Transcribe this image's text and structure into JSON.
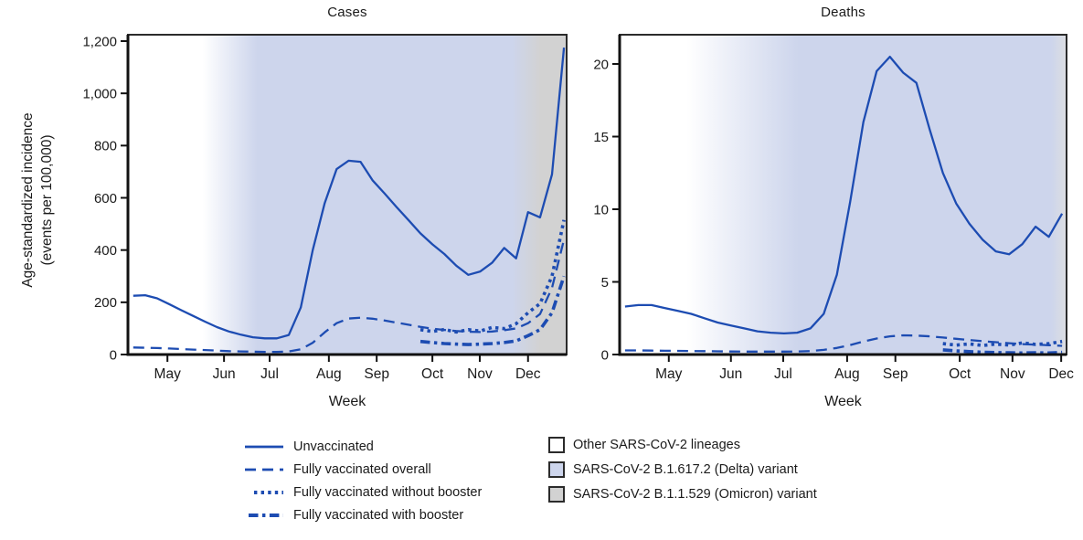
{
  "figure": {
    "background": "#ffffff"
  },
  "colors": {
    "line_blue": "#1d4cb2",
    "delta_fill": "#cdd5ec",
    "omicron_fill": "#d2d2d2",
    "other_fill": "#ffffff",
    "axis": "#111111",
    "border": "#2b2b2b",
    "text": "#1a1a1a"
  },
  "axes": {
    "y_label_line1": "Age-standardized incidence",
    "y_label_line2": "(events per 100,000)",
    "x_label": "Week"
  },
  "legend": {
    "lines": [
      {
        "key": "unvaccinated",
        "label": "Unvaccinated",
        "style": "solid"
      },
      {
        "key": "fully_vaccinated_overall",
        "label": "Fully vaccinated overall",
        "style": "dashed"
      },
      {
        "key": "fully_vaccinated_without_booster",
        "label": "Fully vaccinated without booster",
        "style": "dotted"
      },
      {
        "key": "fully_vaccinated_with_booster",
        "label": "Fully vaccinated with booster",
        "style": "dashdot"
      }
    ],
    "regions": [
      {
        "label": "Other SARS-CoV-2 lineages",
        "color": "#ffffff"
      },
      {
        "label": "SARS-CoV-2 B.1.617.2 (Delta) variant",
        "color": "#cdd5ec"
      },
      {
        "label": "SARS-CoV-2 B.1.1.529 (Omicron) variant",
        "color": "#d2d2d2"
      }
    ]
  },
  "chart_data": {
    "type": "line",
    "x_unit": "week",
    "line_color": "#1d4cb2",
    "panels": [
      {
        "title": "Cases",
        "ylim": [
          0,
          1200
        ],
        "yticks": [
          {
            "v": 0,
            "label": "0"
          },
          {
            "v": 200,
            "label": "200"
          },
          {
            "v": 400,
            "label": "400"
          },
          {
            "v": 600,
            "label": "600"
          },
          {
            "v": 800,
            "label": "800"
          },
          {
            "v": 1000,
            "label": "1,000"
          },
          {
            "v": 1200,
            "label": "1,200"
          }
        ],
        "xticks": [
          {
            "label": "May",
            "f": 0.09
          },
          {
            "label": "Jun",
            "f": 0.219
          },
          {
            "label": "Jul",
            "f": 0.323
          },
          {
            "label": "Aug",
            "f": 0.458
          },
          {
            "label": "Sep",
            "f": 0.567
          },
          {
            "label": "Oct",
            "f": 0.694
          },
          {
            "label": "Nov",
            "f": 0.802
          },
          {
            "label": "Dec",
            "f": 0.912
          }
        ],
        "shading": [
          {
            "f": 0.0,
            "color": "#ffffff"
          },
          {
            "f": 0.17,
            "color": "#ffffff"
          },
          {
            "f": 0.295,
            "color": "#cdd5ec"
          },
          {
            "f": 0.875,
            "color": "#cdd5ec"
          },
          {
            "f": 0.94,
            "color": "#d2d2d2"
          },
          {
            "f": 1.0,
            "color": "#d2d2d2"
          }
        ],
        "n_points": 37,
        "series": {
          "unvaccinated": [
            225,
            227,
            215,
            193,
            170,
            148,
            126,
            105,
            88,
            76,
            66,
            62,
            62,
            75,
            180,
            400,
            580,
            710,
            742,
            738,
            667,
            617,
            565,
            515,
            464,
            422,
            385,
            340,
            305,
            318,
            352,
            408,
            368,
            545,
            525,
            690,
            1175
          ],
          "fully_vaccinated_overall": [
            27,
            26,
            25,
            23,
            21,
            19,
            17,
            15,
            13,
            12,
            11,
            10,
            10,
            12,
            20,
            45,
            85,
            120,
            138,
            141,
            137,
            130,
            122,
            114,
            106,
            99,
            94,
            90,
            87,
            86,
            88,
            93,
            100,
            120,
            155,
            255,
            440
          ],
          "fully_vaccinated_without_booster": [
            null,
            null,
            null,
            null,
            null,
            null,
            null,
            null,
            null,
            null,
            null,
            null,
            null,
            null,
            null,
            null,
            null,
            null,
            null,
            null,
            null,
            null,
            null,
            null,
            95,
            88,
            96,
            86,
            95,
            90,
            104,
            99,
            118,
            160,
            195,
            300,
            515
          ],
          "fully_vaccinated_with_booster": [
            null,
            null,
            null,
            null,
            null,
            null,
            null,
            null,
            null,
            null,
            null,
            null,
            null,
            null,
            null,
            null,
            null,
            null,
            null,
            null,
            null,
            null,
            null,
            null,
            50,
            46,
            42,
            40,
            38,
            40,
            42,
            46,
            52,
            72,
            95,
            160,
            300
          ]
        }
      },
      {
        "title": "Deaths",
        "ylim": [
          0,
          20
        ],
        "yticks": [
          {
            "v": 0,
            "label": "0"
          },
          {
            "v": 5,
            "label": "5"
          },
          {
            "v": 10,
            "label": "10"
          },
          {
            "v": 15,
            "label": "15"
          },
          {
            "v": 20,
            "label": "20"
          }
        ],
        "xticks": [
          {
            "label": "May",
            "f": 0.11
          },
          {
            "label": "Jun",
            "f": 0.249
          },
          {
            "label": "Jul",
            "f": 0.366
          },
          {
            "label": "Aug",
            "f": 0.509
          },
          {
            "label": "Sep",
            "f": 0.617
          },
          {
            "label": "Oct",
            "f": 0.761
          },
          {
            "label": "Nov",
            "f": 0.879
          },
          {
            "label": "Dec",
            "f": 0.988
          }
        ],
        "shading": [
          {
            "f": 0.0,
            "color": "#ffffff"
          },
          {
            "f": 0.15,
            "color": "#ffffff"
          },
          {
            "f": 0.4,
            "color": "#cdd5ec"
          },
          {
            "f": 0.965,
            "color": "#cdd5ec"
          },
          {
            "f": 1.0,
            "color": "#dcdee2"
          }
        ],
        "n_points": 34,
        "series": {
          "unvaccinated": [
            3.3,
            3.4,
            3.4,
            3.2,
            3.0,
            2.8,
            2.5,
            2.2,
            2.0,
            1.8,
            1.6,
            1.5,
            1.45,
            1.5,
            1.8,
            2.8,
            5.5,
            10.5,
            16.0,
            19.5,
            20.5,
            19.4,
            18.7,
            15.5,
            12.5,
            10.4,
            9.0,
            7.9,
            7.1,
            6.9,
            7.6,
            8.8,
            8.1,
            9.7
          ],
          "fully_vaccinated_overall": [
            0.28,
            0.28,
            0.27,
            0.26,
            0.25,
            0.24,
            0.23,
            0.22,
            0.21,
            0.2,
            0.2,
            0.2,
            0.2,
            0.21,
            0.24,
            0.32,
            0.45,
            0.65,
            0.9,
            1.1,
            1.25,
            1.32,
            1.3,
            1.25,
            1.17,
            1.08,
            1.0,
            0.92,
            0.85,
            0.78,
            0.72,
            0.68,
            0.64,
            0.6
          ],
          "fully_vaccinated_without_booster": [
            null,
            null,
            null,
            null,
            null,
            null,
            null,
            null,
            null,
            null,
            null,
            null,
            null,
            null,
            null,
            null,
            null,
            null,
            null,
            null,
            null,
            null,
            null,
            null,
            0.75,
            0.65,
            0.73,
            0.62,
            0.72,
            0.65,
            0.8,
            0.7,
            0.75,
            0.9
          ],
          "fully_vaccinated_with_booster": [
            null,
            null,
            null,
            null,
            null,
            null,
            null,
            null,
            null,
            null,
            null,
            null,
            null,
            null,
            null,
            null,
            null,
            null,
            null,
            null,
            null,
            null,
            null,
            null,
            0.32,
            0.25,
            0.2,
            0.16,
            0.13,
            0.12,
            0.11,
            0.12,
            0.11,
            0.15
          ]
        }
      }
    ]
  }
}
